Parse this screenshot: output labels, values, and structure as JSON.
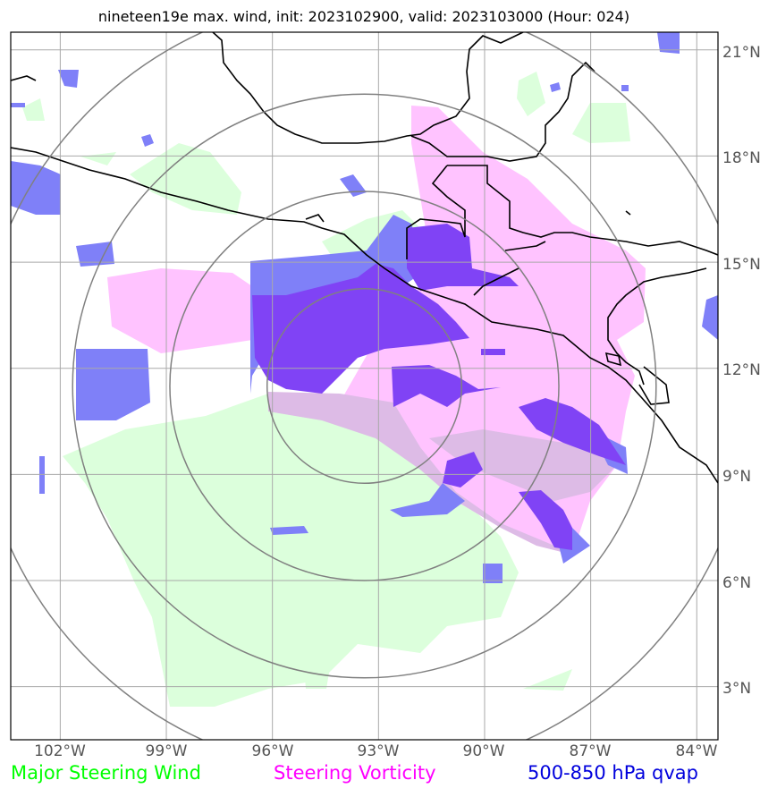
{
  "title": "nineteen19e max. wind, init: 2023102900, valid: 2023103000 (Hour: 024)",
  "map": {
    "lon_range": [
      -103.4,
      -83.4
    ],
    "lat_range": [
      1.5,
      21.5
    ],
    "storm_center": {
      "lon": -93.4,
      "lat": 11.5
    },
    "lat_labels": [
      "21°N",
      "18°N",
      "15°N",
      "12°N",
      "9°N",
      "6°N",
      "3°N"
    ],
    "lon_labels": [
      "102°W",
      "99°W",
      "96°W",
      "93°W",
      "90°W",
      "87°W",
      "84°W"
    ],
    "range_rings_deg": [
      2.75,
      5.5,
      8.25,
      11.0
    ]
  },
  "legend": {
    "wind": {
      "label": "Major Steering Wind",
      "color": "#00ff00"
    },
    "vorticity": {
      "label": "Steering Vorticity",
      "color": "#ff00ff"
    },
    "qvap": {
      "label": "500-850 hPa qvap",
      "color": "#0000dd"
    }
  },
  "colors": {
    "wind_fill": "#dcffdc",
    "vort_fill": "#ffc3ff",
    "vort_wind_overlap": "#ddbbe6",
    "qvap_fill": "#7f80f8",
    "qvap_vort_overlap": "#8043f5",
    "grid": "#a9a9a9",
    "rings": "#808080",
    "coast": "#000000"
  }
}
